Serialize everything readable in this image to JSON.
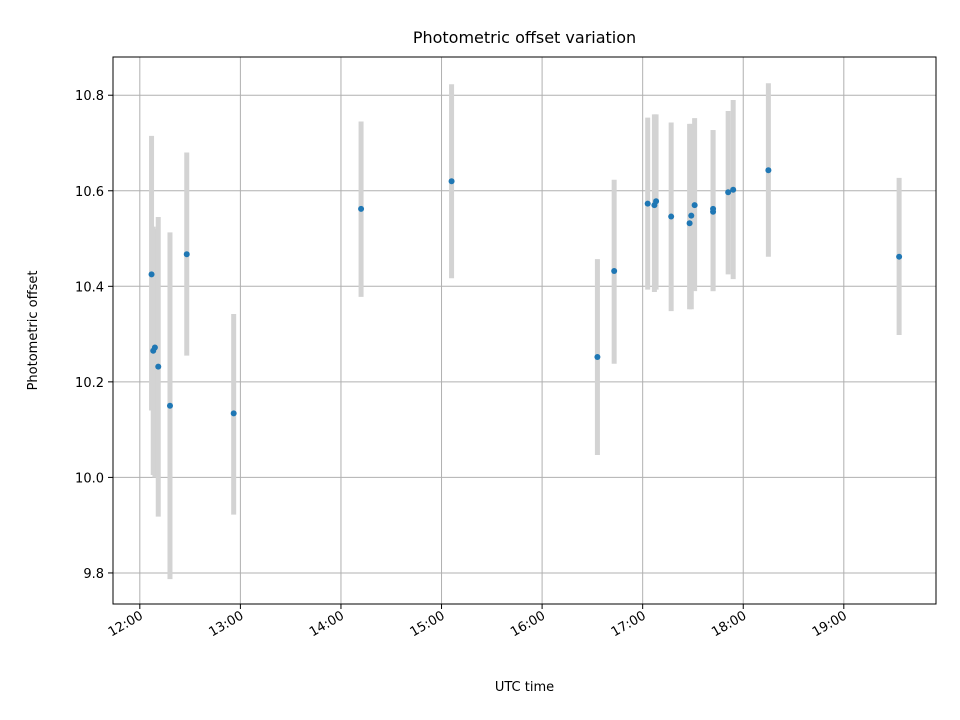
{
  "chart_data": {
    "type": "scatter",
    "title": "Photometric offset variation",
    "xlabel": "UTC time",
    "ylabel": "Photometric offset",
    "x_unit": "UTC time (HH:MM)",
    "xlim": [
      "11:44",
      "19:55"
    ],
    "ylim": [
      9.735,
      10.88
    ],
    "x_ticks": [
      "12:00",
      "13:00",
      "14:00",
      "15:00",
      "16:00",
      "17:00",
      "18:00",
      "19:00"
    ],
    "y_ticks": [
      9.8,
      10.0,
      10.2,
      10.4,
      10.6,
      10.8
    ],
    "y_tick_labels": [
      "9.8",
      "10.0",
      "10.2",
      "10.4",
      "10.6",
      "10.8"
    ],
    "grid": true,
    "marker_color": "#1f77b4",
    "errorbar_color": "#d3d3d3",
    "points": [
      {
        "x": "12:07",
        "y": 10.425,
        "err_low": 10.14,
        "err_high": 10.715
      },
      {
        "x": "12:08",
        "y": 10.265,
        "err_low": 10.005,
        "err_high": 10.525
      },
      {
        "x": "12:09",
        "y": 10.272,
        "err_low": 10.0,
        "err_high": 10.52
      },
      {
        "x": "12:11",
        "y": 10.232,
        "err_low": 9.918,
        "err_high": 10.545
      },
      {
        "x": "12:18",
        "y": 10.15,
        "err_low": 9.787,
        "err_high": 10.513
      },
      {
        "x": "12:28",
        "y": 10.467,
        "err_low": 10.255,
        "err_high": 10.68
      },
      {
        "x": "12:56",
        "y": 10.134,
        "err_low": 9.922,
        "err_high": 10.342
      },
      {
        "x": "14:12",
        "y": 10.562,
        "err_low": 10.378,
        "err_high": 10.745
      },
      {
        "x": "15:06",
        "y": 10.62,
        "err_low": 10.417,
        "err_high": 10.823
      },
      {
        "x": "16:33",
        "y": 10.252,
        "err_low": 10.047,
        "err_high": 10.457
      },
      {
        "x": "16:43",
        "y": 10.432,
        "err_low": 10.238,
        "err_high": 10.623
      },
      {
        "x": "17:03",
        "y": 10.573,
        "err_low": 10.393,
        "err_high": 10.753
      },
      {
        "x": "17:07",
        "y": 10.57,
        "err_low": 10.388,
        "err_high": 10.76
      },
      {
        "x": "17:08",
        "y": 10.578,
        "err_low": 10.393,
        "err_high": 10.76
      },
      {
        "x": "17:17",
        "y": 10.546,
        "err_low": 10.348,
        "err_high": 10.743
      },
      {
        "x": "17:28",
        "y": 10.532,
        "err_low": 10.352,
        "err_high": 10.74
      },
      {
        "x": "17:29",
        "y": 10.548,
        "err_low": 10.352,
        "err_high": 10.74
      },
      {
        "x": "17:31",
        "y": 10.57,
        "err_low": 10.39,
        "err_high": 10.752
      },
      {
        "x": "17:42",
        "y": 10.556,
        "err_low": 10.39,
        "err_high": 10.727
      },
      {
        "x": "17:42",
        "y": 10.562,
        "err_low": 10.39,
        "err_high": 10.727
      },
      {
        "x": "17:51",
        "y": 10.597,
        "err_low": 10.425,
        "err_high": 10.767
      },
      {
        "x": "17:54",
        "y": 10.602,
        "err_low": 10.415,
        "err_high": 10.79
      },
      {
        "x": "18:15",
        "y": 10.643,
        "err_low": 10.462,
        "err_high": 10.825
      },
      {
        "x": "19:33",
        "y": 10.462,
        "err_low": 10.298,
        "err_high": 10.627
      }
    ]
  }
}
